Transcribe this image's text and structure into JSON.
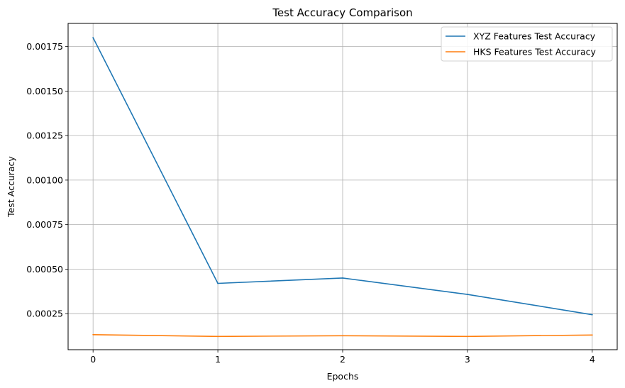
{
  "chart_data": {
    "type": "line",
    "title": "Test Accuracy Comparison",
    "xlabel": "Epochs",
    "ylabel": "Test Accuracy",
    "x": [
      0,
      1,
      2,
      3,
      4
    ],
    "xticks": [
      "0",
      "1",
      "2",
      "3",
      "4"
    ],
    "xlim": [
      -0.2,
      4.2
    ],
    "ylim": [
      4.75e-05,
      0.00188
    ],
    "yticks": [
      0.00025,
      0.0005,
      0.00075,
      0.001,
      0.00125,
      0.0015,
      0.00175
    ],
    "yticklabels": [
      "0.00025",
      "0.00050",
      "0.00075",
      "0.00100",
      "0.00125",
      "0.00150",
      "0.00175"
    ],
    "grid": true,
    "legend_position": "top-right",
    "series": [
      {
        "name": "XYZ Features Test Accuracy",
        "color": "#1f77b4",
        "values": [
          0.0018,
          0.00042,
          0.00045,
          0.000358,
          0.000244
        ]
      },
      {
        "name": "HKS Features Test Accuracy",
        "color": "#ff7f0e",
        "values": [
          0.000132,
          0.000122,
          0.000126,
          0.000122,
          0.00013
        ]
      }
    ]
  }
}
